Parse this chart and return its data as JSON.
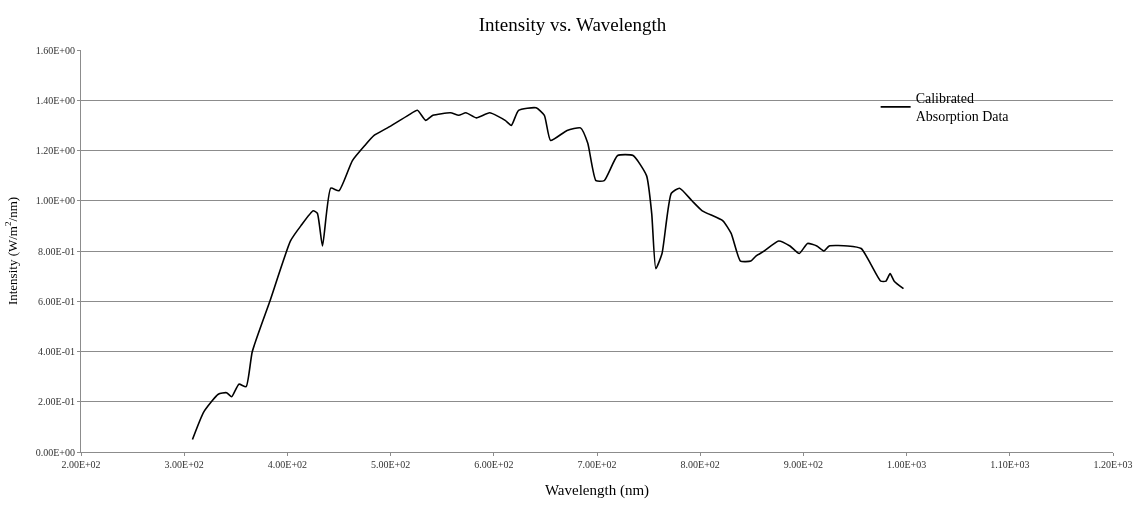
{
  "chart_data": {
    "type": "line",
    "title": "Intensity vs. Wavelength",
    "xlabel": "Wavelength (nm)",
    "ylabel": "Intensity (W/m$^{2}$/nm)",
    "xlim": [
      200,
      1200
    ],
    "ylim": [
      0,
      1.6
    ],
    "xticks": [
      {
        "value": 200,
        "label": "2.00E+02"
      },
      {
        "value": 300,
        "label": "3.00E+02"
      },
      {
        "value": 400,
        "label": "4.00E+02"
      },
      {
        "value": 500,
        "label": "5.00E+02"
      },
      {
        "value": 600,
        "label": "6.00E+02"
      },
      {
        "value": 700,
        "label": "7.00E+02"
      },
      {
        "value": 800,
        "label": "8.00E+02"
      },
      {
        "value": 900,
        "label": "9.00E+02"
      },
      {
        "value": 1000,
        "label": "1.00E+03"
      },
      {
        "value": 1100,
        "label": "1.10E+03"
      },
      {
        "value": 1200,
        "label": "1.20E+03"
      }
    ],
    "yticks": [
      {
        "value": 0,
        "label": "0.00E+00"
      },
      {
        "value": 0.2,
        "label": "2.00E-01"
      },
      {
        "value": 0.4,
        "label": "4.00E-01"
      },
      {
        "value": 0.6,
        "label": "6.00E-01"
      },
      {
        "value": 0.8,
        "label": "8.00E-01"
      },
      {
        "value": 1.0,
        "label": "1.00E+00"
      },
      {
        "value": 1.2,
        "label": "1.20E+00"
      },
      {
        "value": 1.4,
        "label": "1.40E+00"
      },
      {
        "value": 1.6,
        "label": "1.60E+00"
      }
    ],
    "grid": "y",
    "legend": "top right",
    "marker": "none",
    "line_style": "solid",
    "series": [
      {
        "name": "Calibrated Absorption Data",
        "color": "#000000",
        "x": [
          308,
          319,
          333,
          341,
          346,
          353,
          360,
          366,
          383,
          403,
          413,
          425,
          429,
          434,
          442,
          450,
          463,
          475,
          484,
          497,
          517,
          526,
          534,
          541,
          558,
          566,
          573,
          583,
          596,
          611,
          617,
          624,
          641,
          649,
          655,
          671,
          684,
          691,
          699,
          707,
          720,
          735,
          748,
          753,
          757,
          763,
          772,
          780,
          792,
          802,
          822,
          830,
          839,
          849,
          854,
          862,
          876,
          887,
          896,
          904,
          913,
          920,
          925,
          943,
          956,
          965,
          975,
          980,
          984,
          988,
          997
        ],
        "values": [
          0.05,
          0.16,
          0.23,
          0.236,
          0.22,
          0.27,
          0.26,
          0.4,
          0.6,
          0.84,
          0.9,
          0.96,
          0.95,
          0.82,
          1.05,
          1.04,
          1.16,
          1.22,
          1.26,
          1.29,
          1.34,
          1.36,
          1.32,
          1.34,
          1.35,
          1.34,
          1.35,
          1.33,
          1.35,
          1.32,
          1.3,
          1.36,
          1.37,
          1.34,
          1.24,
          1.28,
          1.29,
          1.23,
          1.08,
          1.08,
          1.18,
          1.18,
          1.1,
          0.95,
          0.73,
          0.79,
          1.03,
          1.05,
          1.0,
          0.96,
          0.92,
          0.87,
          0.76,
          0.76,
          0.78,
          0.8,
          0.84,
          0.82,
          0.79,
          0.83,
          0.82,
          0.8,
          0.82,
          0.82,
          0.81,
          0.75,
          0.68,
          0.68,
          0.71,
          0.68,
          0.65
        ]
      }
    ]
  }
}
